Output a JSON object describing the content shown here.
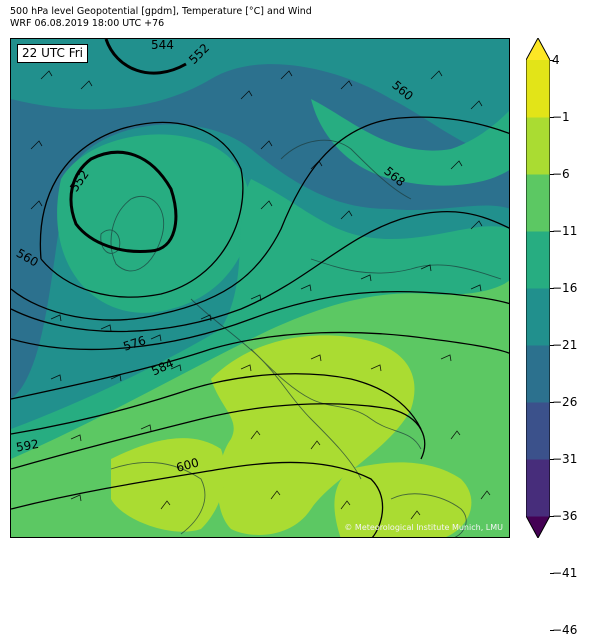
{
  "header": {
    "line1": "500 hPa level Geopotential [gpdm], Temperature [°C] and Wind",
    "line2": "WRF 06.08.2019 18:00 UTC +76"
  },
  "map": {
    "time_label": "22 UTC Fri",
    "credit": "© Meteorological Institute Munich, LMU",
    "contour_labels": [
      "544",
      "552",
      "552",
      "560",
      "560",
      "568",
      "576",
      "584",
      "592",
      "600"
    ]
  },
  "colorbar": {
    "tick_labels": [
      "4",
      "−1",
      "−6",
      "−11",
      "−16",
      "−21",
      "−26",
      "−31",
      "−36",
      "−41",
      "−46"
    ],
    "colors": [
      "#440154",
      "#472d7b",
      "#3b518b",
      "#2c718e",
      "#21908d",
      "#27ad81",
      "#5cc863",
      "#aadc32",
      "#e2e418",
      "#fde725"
    ]
  }
}
